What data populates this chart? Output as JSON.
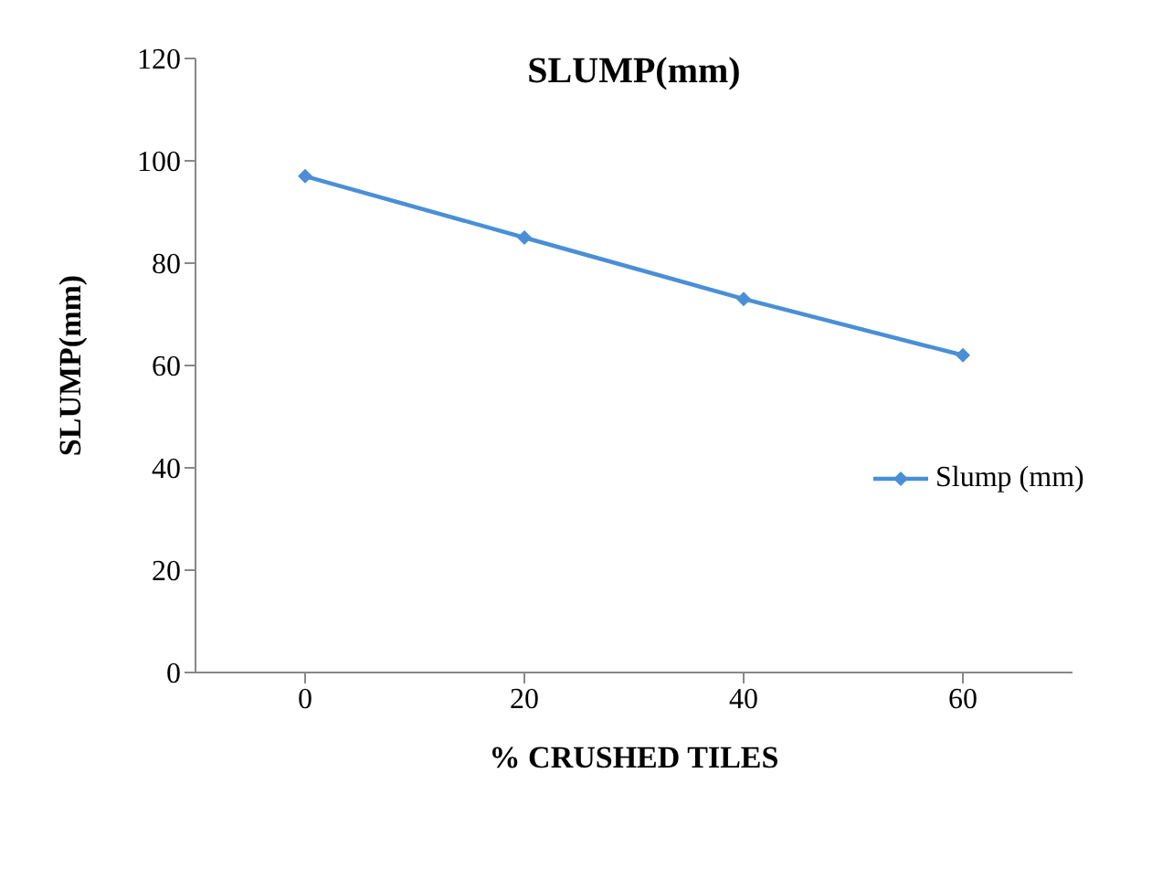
{
  "chart_data": {
    "type": "line",
    "title": "SLUMP(mm)",
    "xlabel": "% CRUSHED TILES",
    "ylabel": "SLUMP(mm)",
    "categories": [
      "0",
      "20",
      "40",
      "60"
    ],
    "series": [
      {
        "name": "Slump (mm)",
        "color": "#4a8fd6",
        "values": [
          97,
          85,
          73,
          62
        ]
      }
    ],
    "ylim": [
      0,
      120
    ],
    "yticks": [
      0,
      20,
      40,
      60,
      80,
      100,
      120
    ],
    "grid": false,
    "legend": "right",
    "marker": "diamond",
    "line_style": "solid"
  }
}
